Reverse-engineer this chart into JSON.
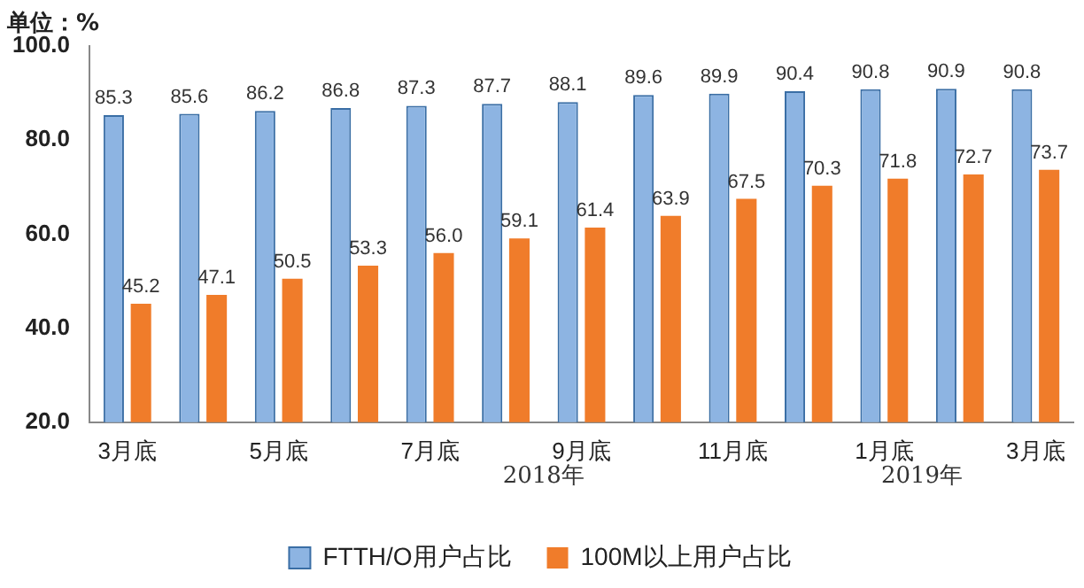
{
  "chart_data": {
    "type": "bar",
    "title": "单位：%",
    "categories": [
      "3月底",
      null,
      "5月底",
      null,
      "7月底",
      null,
      "9月底",
      null,
      "11月底",
      null,
      "1月底",
      null,
      "3月底"
    ],
    "series": [
      {
        "name": "FTTH/O用户占比",
        "color": "#8db4e2",
        "values": [
          85.3,
          85.6,
          86.2,
          86.8,
          87.3,
          87.7,
          88.1,
          89.6,
          89.9,
          90.4,
          90.8,
          90.9,
          90.8
        ],
        "value_labels": [
          "85.3",
          "85.6",
          "86.2",
          "86.8",
          "87.3",
          "87.7",
          "88.1",
          "89.6",
          "89.9",
          "90.4",
          "90.8",
          "90.9",
          "90.8"
        ]
      },
      {
        "name": "100M以上用户占比",
        "color": "#f07c2a",
        "values": [
          45.2,
          47.1,
          50.5,
          53.3,
          56.0,
          59.1,
          61.4,
          63.9,
          67.5,
          70.3,
          71.8,
          72.7,
          73.7
        ],
        "value_labels": [
          "45.2",
          "47.1",
          "50.5",
          "53.3",
          "56.0",
          "59.1",
          "61.4",
          "63.9",
          "67.5",
          "70.3",
          "71.8",
          "72.7",
          "73.7"
        ]
      }
    ],
    "ylim": [
      20,
      100
    ],
    "yticks": [
      {
        "value": 20,
        "label": "20.0"
      },
      {
        "value": 40,
        "label": "40.0"
      },
      {
        "value": 60,
        "label": "60.0"
      },
      {
        "value": 80,
        "label": "80.0"
      },
      {
        "value": 100,
        "label": "100.0"
      }
    ],
    "annotations": [
      "2018年",
      "2019年"
    ],
    "grid": false,
    "legend": "bottom"
  }
}
